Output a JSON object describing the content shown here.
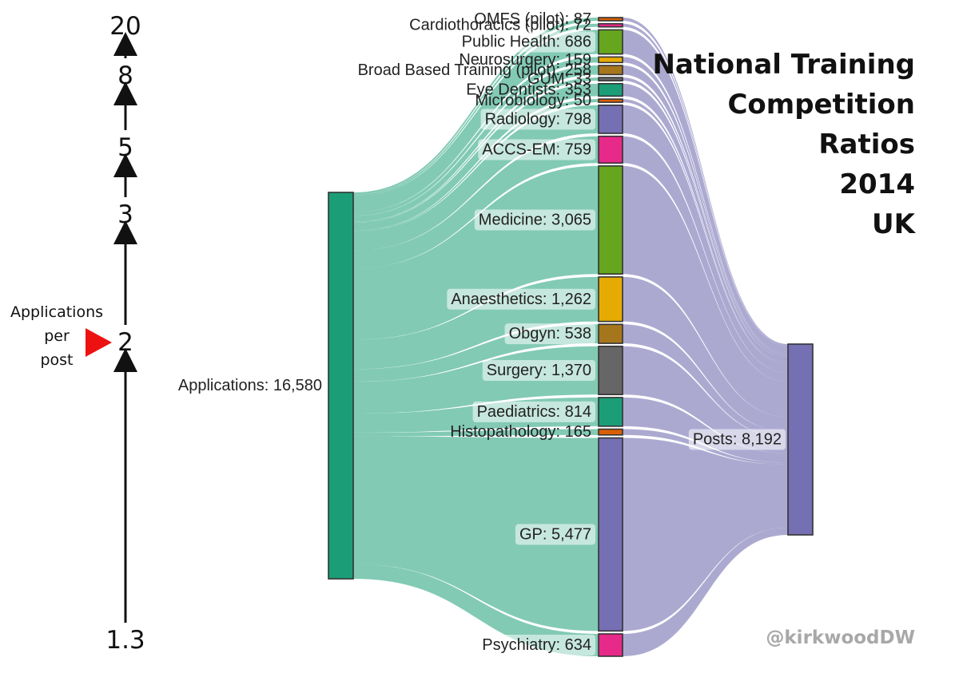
{
  "chart_data": {
    "type": "sankey",
    "title_lines": [
      "National Training",
      "Competition",
      "Ratios",
      "2014",
      "UK"
    ],
    "watermark": "@kirkwoodDW",
    "source": {
      "name": "Applications",
      "value": 16580,
      "label": "Applications: 16,580",
      "color": "#1b9e77"
    },
    "target": {
      "name": "Posts",
      "value": 8192,
      "label": "Posts: 8,192",
      "color": "#7570b3"
    },
    "link_colors": {
      "applications": "#1b9e77",
      "posts": "#7570b3"
    },
    "specialties": [
      {
        "name": "OMFS (pilot)",
        "value": 87,
        "label": "OMFS (pilot): 87",
        "color": "#d95f02"
      },
      {
        "name": "Cardiothoracics (pilot)",
        "value": 72,
        "label": "Cardiothoracics (pilot): 72",
        "color": "#e7298a"
      },
      {
        "name": "Public Health",
        "value": 686,
        "label": "Public Health: 686",
        "color": "#66a61e"
      },
      {
        "name": "Neurosurgery",
        "value": 159,
        "label": "Neurosurgery: 159",
        "color": "#e6ab02"
      },
      {
        "name": "Broad Based Training (pilot)",
        "value": 258,
        "label": "Broad Based Training (pilot): 258",
        "color": "#a6761d"
      },
      {
        "name": "GUM",
        "value": 33,
        "label": "GUM: 33",
        "color": "#666666"
      },
      {
        "name": "Eye Dentists",
        "value": 353,
        "label": "Eye Dentists: 353",
        "color": "#1b9e77"
      },
      {
        "name": "Microbiology",
        "value": 50,
        "label": "Microbiology: 50",
        "color": "#d95f02"
      },
      {
        "name": "Radiology",
        "value": 798,
        "label": "Radiology: 798",
        "color": "#7570b3"
      },
      {
        "name": "ACCS-EM",
        "value": 759,
        "label": "ACCS-EM: 759",
        "color": "#e7298a"
      },
      {
        "name": "Medicine",
        "value": 3065,
        "label": "Medicine: 3,065",
        "color": "#66a61e"
      },
      {
        "name": "Anaesthetics",
        "value": 1262,
        "label": "Anaesthetics: 1,262",
        "color": "#e6ab02"
      },
      {
        "name": "Obgyn",
        "value": 538,
        "label": "Obgyn: 538",
        "color": "#a6761d"
      },
      {
        "name": "Surgery",
        "value": 1370,
        "label": "Surgery: 1,370",
        "color": "#666666"
      },
      {
        "name": "Paediatrics",
        "value": 814,
        "label": "Paediatrics: 814",
        "color": "#1b9e77"
      },
      {
        "name": "Histopathology",
        "value": 165,
        "label": "Histopathology: 165",
        "color": "#d95f02"
      },
      {
        "name": "GP",
        "value": 5477,
        "label": "GP: 5,477",
        "color": "#7570b3"
      },
      {
        "name": "Psychiatry",
        "value": 634,
        "label": "Psychiatry: 634",
        "color": "#e7298a"
      }
    ],
    "ratio_axis": {
      "ticks": [
        "20",
        "8",
        "5",
        "3",
        "2",
        "1.3"
      ],
      "marker_tick": "2",
      "marker_color": "#ee1111",
      "marker_label_lines": [
        "Applications",
        "per",
        "post"
      ]
    }
  }
}
